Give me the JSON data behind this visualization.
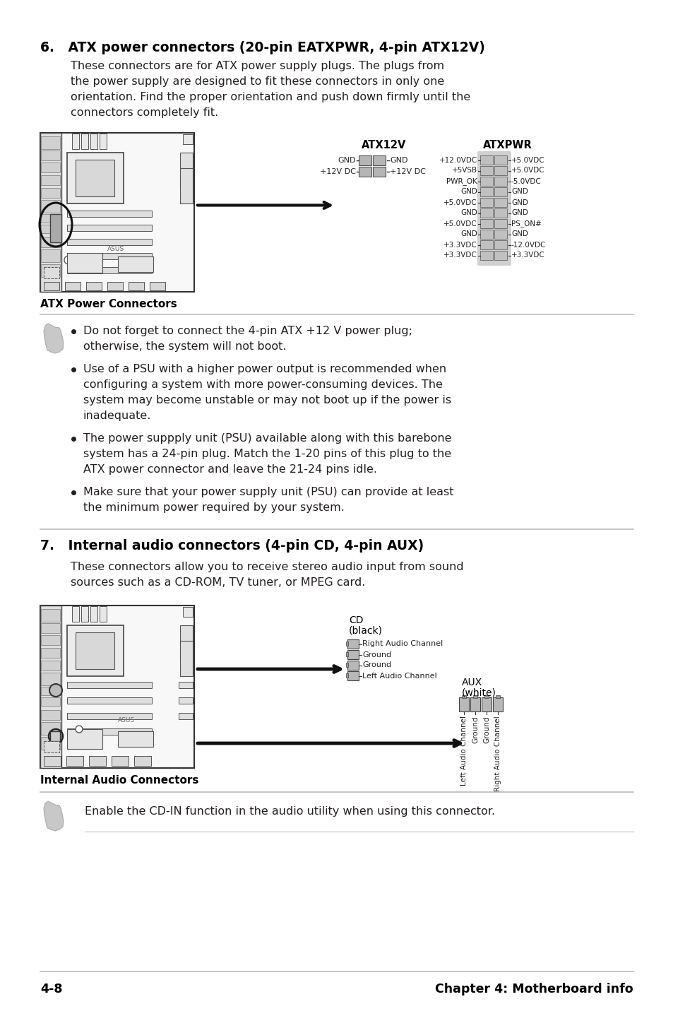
{
  "page_bg": "#ffffff",
  "title_section6": "6.   ATX power connectors (20-pin EATXPWR, 4-pin ATX12V)",
  "body_section6_lines": [
    "These connectors are for ATX power supply plugs. The plugs from",
    "the power supply are designed to fit these connectors in only one",
    "orientation. Find the proper orientation and push down firmly until the",
    "connectors completely fit."
  ],
  "title_section7": "7.   Internal audio connectors (4-pin CD, 4-pin AUX)",
  "body_section7_lines": [
    "These connectors allow you to receive stereo audio input from sound",
    "sources such as a CD-ROM, TV tuner, or MPEG card."
  ],
  "atx12v_label": "ATX12V",
  "atxpwr_label": "ATXPWR",
  "atx_power_connectors_label": "ATX Power Connectors",
  "internal_audio_connectors_label": "Internal Audio Connectors",
  "atx12v_pins": [
    [
      "GND",
      "GND"
    ],
    [
      "+12V DC",
      "+12V DC"
    ]
  ],
  "atxpwr_pins": [
    [
      "+12.0VDC",
      "+5.0VDC"
    ],
    [
      "+5VSB",
      "+5.0VDC"
    ],
    [
      "PWR_OK",
      "-5.0VDC"
    ],
    [
      "GND",
      "GND"
    ],
    [
      "+5.0VDC",
      "GND"
    ],
    [
      "GND",
      "GND"
    ],
    [
      "+5.0VDC",
      "PS_ON#"
    ],
    [
      "GND",
      "GND"
    ],
    [
      "+3.3VDC",
      "-12.0VDC"
    ],
    [
      "+3.3VDC",
      "+3.3VDC"
    ]
  ],
  "cd_label_line1": "CD",
  "cd_label_line2": "(black)",
  "aux_label_line1": "AUX",
  "aux_label_line2": "(white)",
  "cd_pins": [
    "Right Audio Channel",
    "Ground",
    "Ground",
    "Left Audio Channel"
  ],
  "aux_pins": [
    "Left Audio Channel",
    "Ground",
    "Ground",
    "Right Audio Channel"
  ],
  "note1_bullets": [
    [
      "Do not forget to connect the 4-pin ATX +12 V power plug;",
      "otherwise, the system will not boot."
    ],
    [
      "Use of a PSU with a higher power output is recommended when",
      "configuring a system with more power-consuming devices. The",
      "system may become unstable or may not boot up if the power is",
      "inadequate."
    ],
    [
      "The power suppply unit (PSU) available along with this barebone",
      "system has a 24-pin plug. Match the 1-20 pins of this plug to the",
      "ATX power connector and leave the 21-24 pins idle."
    ],
    [
      "Make sure that your power supply unit (PSU) can provide at least",
      "the minimum power required by your system."
    ]
  ],
  "note2_text": "Enable the CD-IN function in the audio utility when using this connector.",
  "footer_left": "4-8",
  "footer_right": "Chapter 4: Motherboard info",
  "text_color": "#231f20",
  "line_color": "#bbbbbb",
  "heading_color": "#000000",
  "bold_color": "#000000"
}
